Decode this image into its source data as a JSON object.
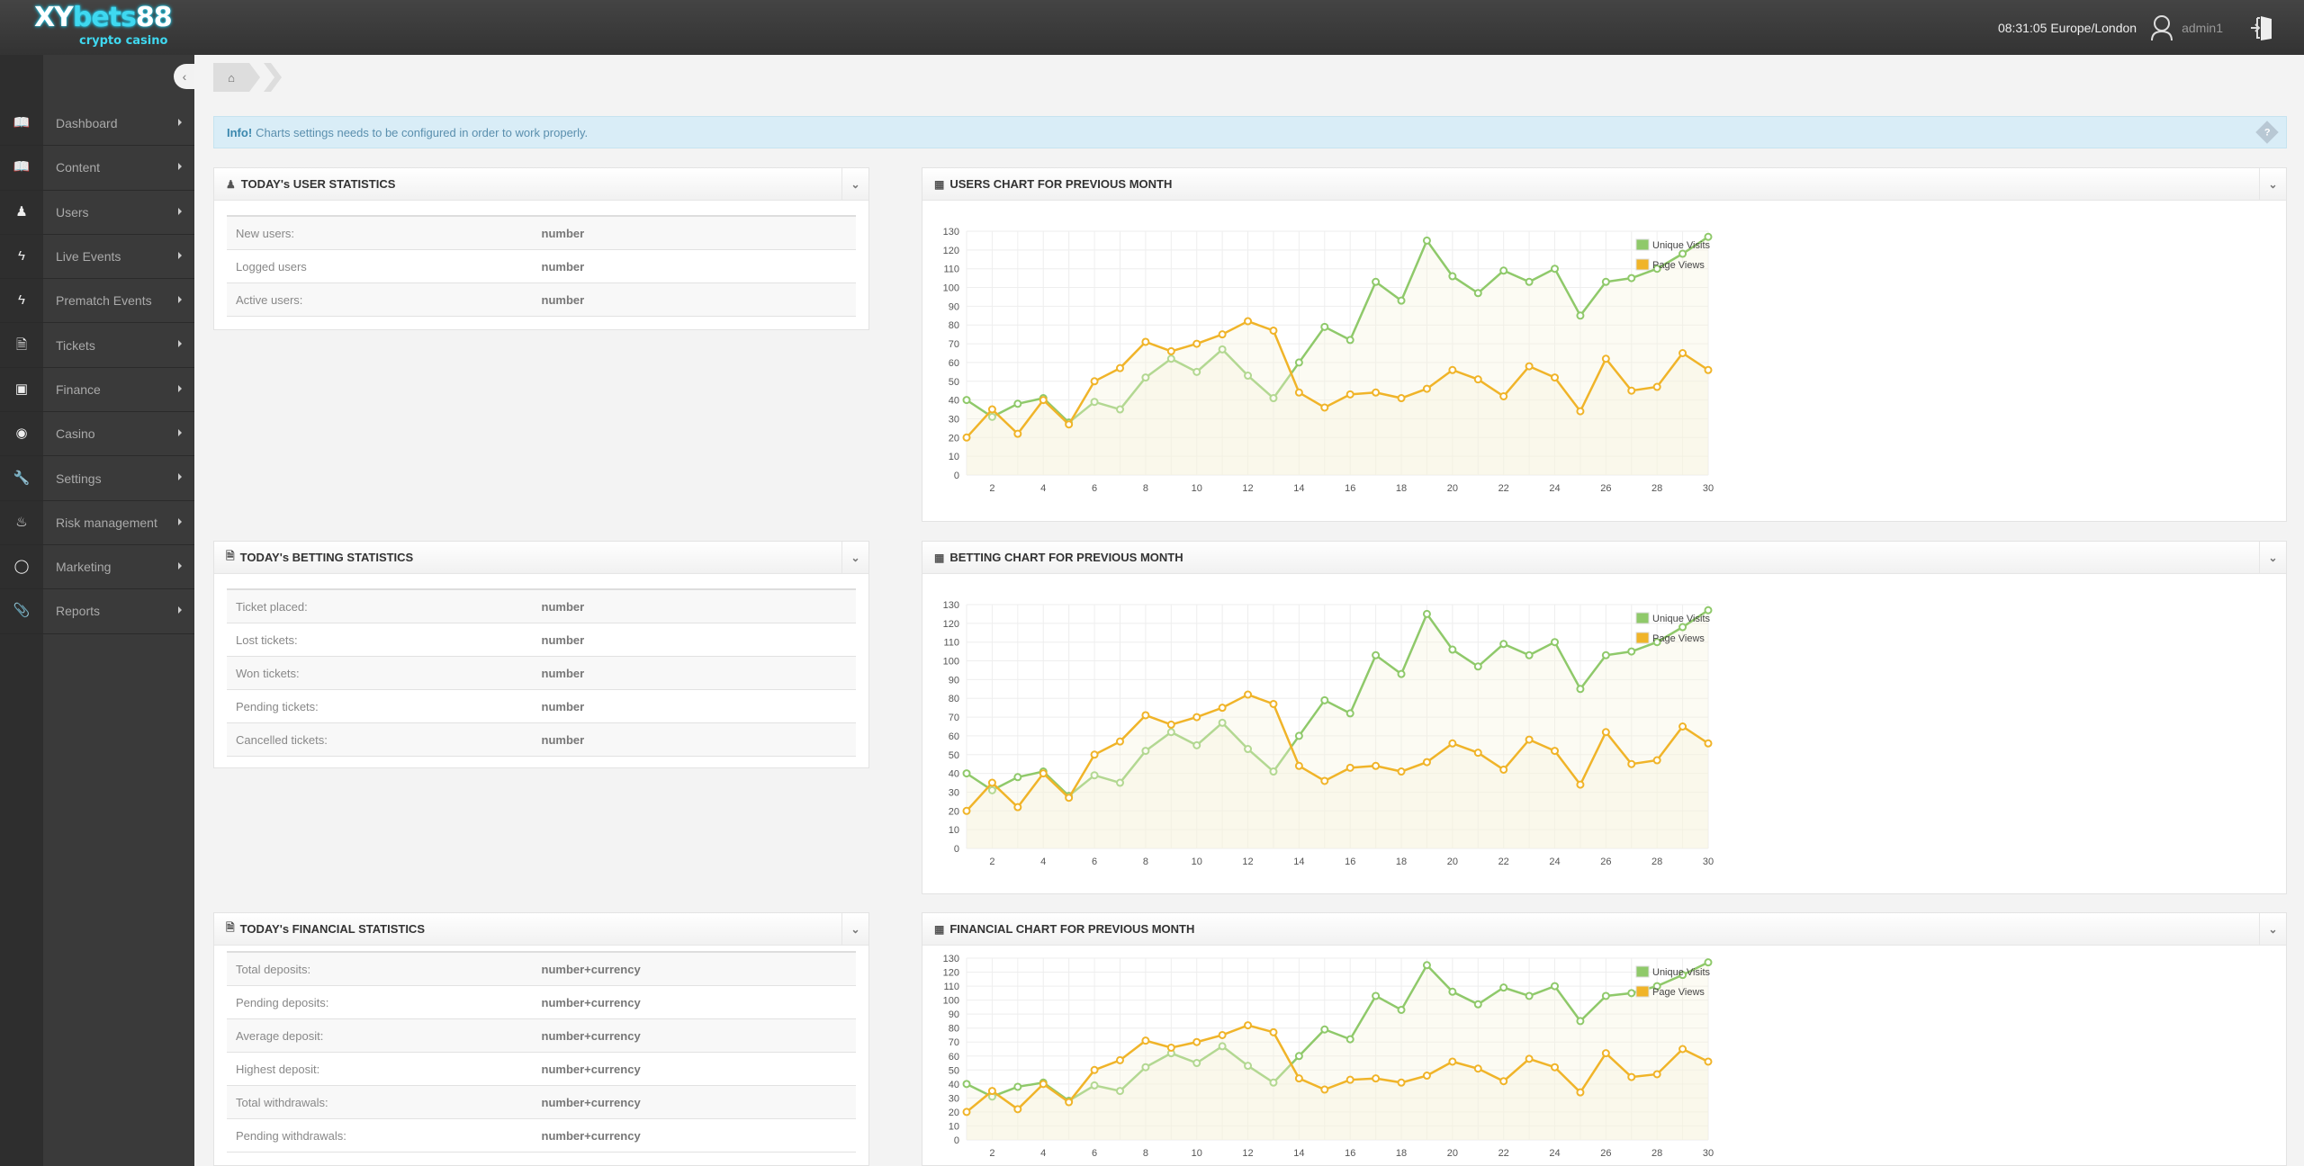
{
  "brand": {
    "logo_main": "XYbets88",
    "logo_sub": "crypto casino"
  },
  "header": {
    "clock": "08:31:05 Europe/London",
    "username": "admin1"
  },
  "sidebar": {
    "items": [
      {
        "label": "Dashboard",
        "icon": "book-icon"
      },
      {
        "label": "Content",
        "icon": "book-icon"
      },
      {
        "label": "Users",
        "icon": "user-icon"
      },
      {
        "label": "Live Events",
        "icon": "bolt-icon"
      },
      {
        "label": "Prematch Events",
        "icon": "bolt-icon"
      },
      {
        "label": "Tickets",
        "icon": "file-icon"
      },
      {
        "label": "Finance",
        "icon": "money-icon"
      },
      {
        "label": "Casino",
        "icon": "play-circle-icon"
      },
      {
        "label": "Settings",
        "icon": "wrench-icon"
      },
      {
        "label": "Risk management",
        "icon": "fire-icon"
      },
      {
        "label": "Marketing",
        "icon": "comment-icon"
      },
      {
        "label": "Reports",
        "icon": "paperclip-icon"
      }
    ]
  },
  "info": {
    "strong": "Info!",
    "text": "Charts settings needs to be configured in order to work properly."
  },
  "user_stats": {
    "title": "TODAY's USER STATISTICS",
    "rows": [
      {
        "k": "New users:",
        "v": "number"
      },
      {
        "k": "Logged users",
        "v": "number"
      },
      {
        "k": "Active users:",
        "v": "number"
      }
    ]
  },
  "betting_stats": {
    "title": "TODAY's BETTING STATISTICS",
    "rows": [
      {
        "k": "Ticket placed:",
        "v": "number"
      },
      {
        "k": "Lost tickets:",
        "v": "number"
      },
      {
        "k": "Won tickets:",
        "v": "number"
      },
      {
        "k": "Pending tickets:",
        "v": "number"
      },
      {
        "k": "Cancelled tickets:",
        "v": "number"
      }
    ]
  },
  "financial_stats": {
    "title": "TODAY's FINANCIAL STATISTICS",
    "rows": [
      {
        "k": "Total deposits:",
        "v": "number+currency"
      },
      {
        "k": "Pending deposits:",
        "v": "number+currency"
      },
      {
        "k": "Average deposit:",
        "v": "number+currency"
      },
      {
        "k": "Highest deposit:",
        "v": "number+currency"
      },
      {
        "k": "Total withdrawals:",
        "v": "number+currency"
      },
      {
        "k": "Pending withdrawals:",
        "v": "number+currency"
      }
    ]
  },
  "chart_titles": [
    "USERS CHART FOR PREVIOUS MONTH",
    "BETTING CHART FOR PREVIOUS MONTH",
    "FINANCIAL CHART FOR PREVIOUS MONTH"
  ],
  "chart_data": [
    {
      "type": "line",
      "x": [
        1,
        2,
        3,
        4,
        5,
        6,
        7,
        8,
        9,
        10,
        11,
        12,
        13,
        14,
        15,
        16,
        17,
        18,
        19,
        20,
        21,
        22,
        23,
        24,
        25,
        26,
        27,
        28,
        29,
        30
      ],
      "xticks": [
        2,
        4,
        6,
        8,
        10,
        12,
        14,
        16,
        18,
        20,
        22,
        24,
        26,
        28,
        30
      ],
      "ylim": [
        0,
        130
      ],
      "yticks": [
        0,
        10,
        20,
        30,
        40,
        50,
        60,
        70,
        80,
        90,
        100,
        110,
        120,
        130
      ],
      "grid": true,
      "legend": "top-right",
      "series": [
        {
          "name": "Unique Visits",
          "color": "#8fc96a",
          "values": [
            40,
            31,
            38,
            41,
            28,
            39,
            35,
            52,
            62,
            55,
            67,
            53,
            41,
            60,
            79,
            72,
            103,
            93,
            125,
            106,
            97,
            109,
            103,
            110,
            85,
            103,
            105,
            110,
            118,
            127
          ]
        },
        {
          "name": "Page Views",
          "color": "#f0b429",
          "values": [
            20,
            35,
            22,
            40,
            27,
            50,
            57,
            71,
            66,
            70,
            75,
            82,
            77,
            44,
            36,
            43,
            44,
            41,
            46,
            56,
            51,
            42,
            58,
            52,
            34,
            62,
            45,
            47,
            65,
            56
          ]
        }
      ]
    },
    {
      "type": "line",
      "x": [
        1,
        2,
        3,
        4,
        5,
        6,
        7,
        8,
        9,
        10,
        11,
        12,
        13,
        14,
        15,
        16,
        17,
        18,
        19,
        20,
        21,
        22,
        23,
        24,
        25,
        26,
        27,
        28,
        29,
        30
      ],
      "xticks": [
        2,
        4,
        6,
        8,
        10,
        12,
        14,
        16,
        18,
        20,
        22,
        24,
        26,
        28,
        30
      ],
      "ylim": [
        0,
        130
      ],
      "yticks": [
        0,
        10,
        20,
        30,
        40,
        50,
        60,
        70,
        80,
        90,
        100,
        110,
        120,
        130
      ],
      "grid": true,
      "legend": "top-right",
      "series": [
        {
          "name": "Unique Visits",
          "color": "#8fc96a",
          "values": [
            40,
            31,
            38,
            41,
            28,
            39,
            35,
            52,
            62,
            55,
            67,
            53,
            41,
            60,
            79,
            72,
            103,
            93,
            125,
            106,
            97,
            109,
            103,
            110,
            85,
            103,
            105,
            110,
            118,
            127
          ]
        },
        {
          "name": "Page Views",
          "color": "#f0b429",
          "values": [
            20,
            35,
            22,
            40,
            27,
            50,
            57,
            71,
            66,
            70,
            75,
            82,
            77,
            44,
            36,
            43,
            44,
            41,
            46,
            56,
            51,
            42,
            58,
            52,
            34,
            62,
            45,
            47,
            65,
            56
          ]
        }
      ]
    },
    {
      "type": "line",
      "x": [
        1,
        2,
        3,
        4,
        5,
        6,
        7,
        8,
        9,
        10,
        11,
        12,
        13,
        14,
        15,
        16,
        17,
        18,
        19,
        20,
        21,
        22,
        23,
        24,
        25,
        26,
        27,
        28,
        29,
        30
      ],
      "xticks": [
        2,
        4,
        6,
        8,
        10,
        12,
        14,
        16,
        18,
        20,
        22,
        24,
        26,
        28,
        30
      ],
      "ylim": [
        0,
        130
      ],
      "yticks": [
        0,
        10,
        20,
        30,
        40,
        50,
        60,
        70,
        80,
        90,
        100,
        110,
        120,
        130
      ],
      "grid": true,
      "legend": "top-right",
      "series": [
        {
          "name": "Unique Visits",
          "color": "#8fc96a",
          "values": [
            40,
            31,
            38,
            41,
            28,
            39,
            35,
            52,
            62,
            55,
            67,
            53,
            41,
            60,
            79,
            72,
            103,
            93,
            125,
            106,
            97,
            109,
            103,
            110,
            85,
            103,
            105,
            110,
            118,
            127
          ]
        },
        {
          "name": "Page Views",
          "color": "#f0b429",
          "values": [
            20,
            35,
            22,
            40,
            27,
            50,
            57,
            71,
            66,
            70,
            75,
            82,
            77,
            44,
            36,
            43,
            44,
            41,
            46,
            56,
            51,
            42,
            58,
            52,
            34,
            62,
            45,
            47,
            65,
            56
          ]
        }
      ]
    }
  ]
}
